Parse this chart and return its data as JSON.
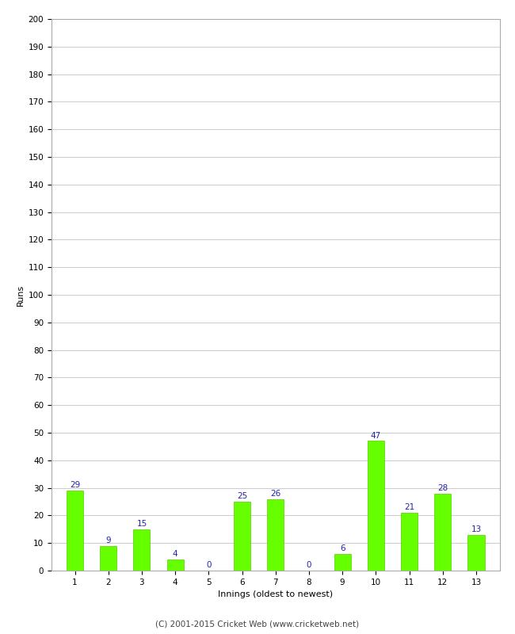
{
  "innings": [
    1,
    2,
    3,
    4,
    5,
    6,
    7,
    8,
    9,
    10,
    11,
    12,
    13
  ],
  "runs": [
    29,
    9,
    15,
    4,
    0,
    25,
    26,
    0,
    6,
    47,
    21,
    28,
    13
  ],
  "bar_color": "#66ff00",
  "bar_edge_color": "#55cc00",
  "label_color": "#2222aa",
  "xlabel": "Innings (oldest to newest)",
  "ylabel": "Runs",
  "ylim": [
    0,
    200
  ],
  "footer": "(C) 2001-2015 Cricket Web (www.cricketweb.net)",
  "background_color": "#ffffff",
  "grid_color": "#cccccc",
  "label_fontsize": 7.5,
  "axis_label_fontsize": 8,
  "tick_fontsize": 7.5,
  "footer_fontsize": 7.5,
  "bar_width": 0.5
}
